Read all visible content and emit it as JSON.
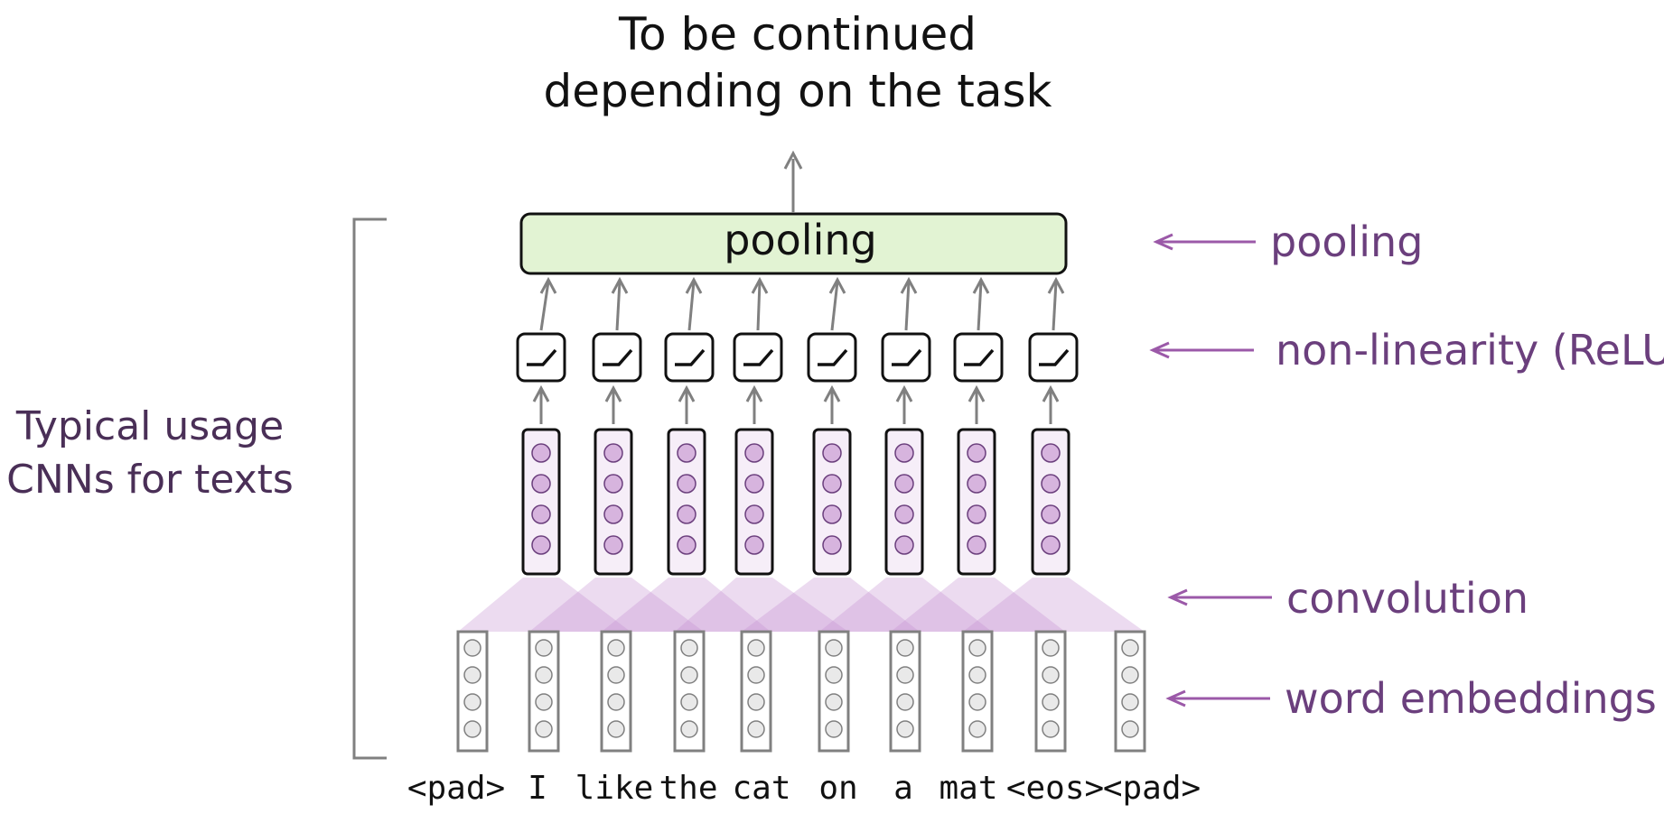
{
  "title": {
    "line1": "To be continued",
    "line2": "depending on the task"
  },
  "side_label": {
    "line1": "Typical usage",
    "line2": "CNNs for texts"
  },
  "pooling_box": {
    "label": "pooling"
  },
  "layer_labels": {
    "pooling": "pooling",
    "nonlinearity": "non-linearity (ReLU)",
    "convolution": "convolution",
    "embeddings": "word embeddings"
  },
  "tokens": [
    "<pad>",
    "I",
    "like",
    "the",
    "cat",
    "on",
    "a",
    "mat",
    "<eos>",
    "<pad>"
  ],
  "colors": {
    "arrow_gray": "#808080",
    "label_purple": "#9b59a8",
    "pool_fill": "#e2f3d3",
    "conv_fill": "#f6eef8",
    "conv_circle": "#d7b4de",
    "emb_circle": "#e9e9e9",
    "triangle": "#c490cf"
  }
}
